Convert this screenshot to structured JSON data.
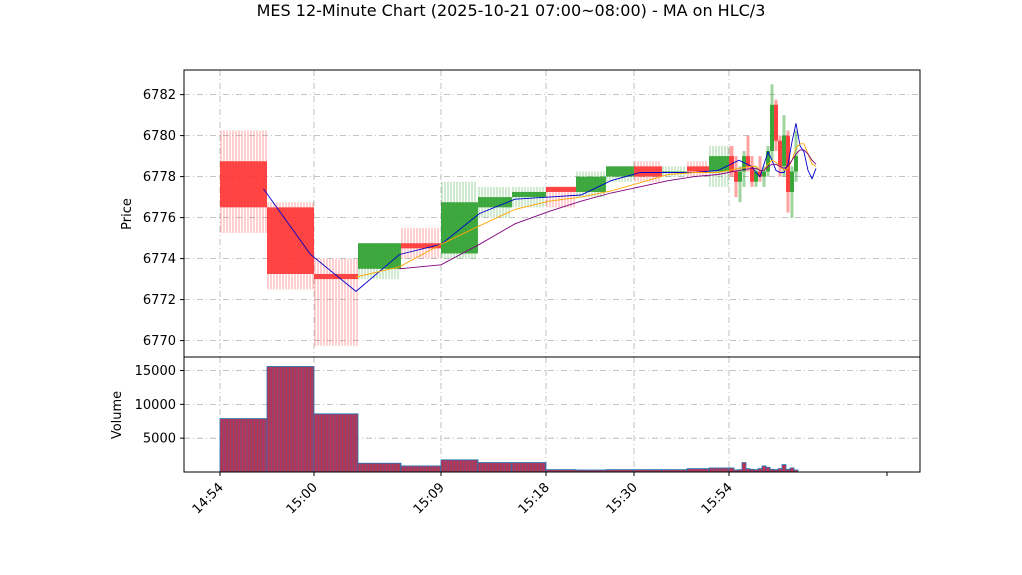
{
  "title": "MES 12-Minute Chart (2025-10-21 07:00~08:00) - MA on HLC/3",
  "colors": {
    "up": "#2ca02c",
    "down": "#ff3333",
    "ma_short": "#0000cc",
    "ma_mid": "#ffa500",
    "ma_long": "#800080",
    "volume_bar": "#c03050",
    "volume_edge": "#1f77b4",
    "grid": "#b0b0b0"
  },
  "chart_data": [
    {
      "type": "candlestick",
      "ylabel": "Price",
      "ylim": [
        6769.2,
        6783.2
      ],
      "yticks": [
        6770,
        6772,
        6774,
        6776,
        6778,
        6780,
        6782
      ],
      "xticks": [
        "14:54",
        "15:00",
        "15:09",
        "15:18",
        "15:30",
        "15:54"
      ],
      "grid": true,
      "candles": [
        {
          "o": 6778.75,
          "h": 6780.25,
          "l": 6775.25,
          "c": 6776.5
        },
        {
          "o": 6776.5,
          "h": 6776.75,
          "l": 6772.5,
          "c": 6773.25
        },
        {
          "o": 6773.25,
          "h": 6774.0,
          "l": 6769.75,
          "c": 6773.0
        },
        {
          "o": 6773.5,
          "h": 6774.75,
          "l": 6773.0,
          "c": 6774.75
        },
        {
          "o": 6774.75,
          "h": 6775.5,
          "l": 6774.0,
          "c": 6774.5
        },
        {
          "o": 6774.25,
          "h": 6777.75,
          "l": 6774.0,
          "c": 6776.75
        },
        {
          "o": 6776.5,
          "h": 6777.5,
          "l": 6776.0,
          "c": 6777.0
        },
        {
          "o": 6777.0,
          "h": 6777.5,
          "l": 6776.5,
          "c": 6777.25
        },
        {
          "o": 6777.5,
          "h": 6777.5,
          "l": 6776.5,
          "c": 6777.25
        },
        {
          "o": 6777.25,
          "h": 6778.25,
          "l": 6777.0,
          "c": 6778.0
        },
        {
          "o": 6778.0,
          "h": 6778.5,
          "l": 6777.75,
          "c": 6778.5
        },
        {
          "o": 6778.5,
          "h": 6778.75,
          "l": 6777.75,
          "c": 6778.0
        },
        {
          "o": 6778.25,
          "h": 6778.5,
          "l": 6778.0,
          "c": 6778.25
        },
        {
          "o": 6778.5,
          "h": 6778.75,
          "l": 6778.0,
          "c": 6778.25
        },
        {
          "o": 6778.25,
          "h": 6779.5,
          "l": 6777.5,
          "c": 6779.0
        },
        {
          "o": 6779.0,
          "h": 6779.5,
          "l": 6778.0,
          "c": 6778.25
        },
        {
          "o": 6778.25,
          "h": 6779.0,
          "l": 6777.0,
          "c": 6777.75
        },
        {
          "o": 6777.75,
          "h": 6778.5,
          "l": 6776.75,
          "c": 6778.25
        },
        {
          "o": 6778.25,
          "h": 6779.25,
          "l": 6777.5,
          "c": 6779.0
        },
        {
          "o": 6779.0,
          "h": 6780.0,
          "l": 6778.25,
          "c": 6778.5
        },
        {
          "o": 6778.5,
          "h": 6779.0,
          "l": 6777.5,
          "c": 6777.75
        },
        {
          "o": 6777.75,
          "h": 6778.5,
          "l": 6777.5,
          "c": 6778.25
        },
        {
          "o": 6778.25,
          "h": 6779.0,
          "l": 6777.75,
          "c": 6778.0
        },
        {
          "o": 6778.0,
          "h": 6778.5,
          "l": 6777.5,
          "c": 6778.25
        },
        {
          "o": 6778.25,
          "h": 6779.5,
          "l": 6778.0,
          "c": 6779.25
        },
        {
          "o": 6779.25,
          "h": 6782.5,
          "l": 6778.75,
          "c": 6781.5
        },
        {
          "o": 6781.5,
          "h": 6781.75,
          "l": 6779.25,
          "c": 6779.75
        },
        {
          "o": 6779.75,
          "h": 6780.0,
          "l": 6778.0,
          "c": 6778.5
        },
        {
          "o": 6778.5,
          "h": 6781.0,
          "l": 6778.0,
          "c": 6780.0
        },
        {
          "o": 6780.0,
          "h": 6780.25,
          "l": 6776.25,
          "c": 6777.25
        },
        {
          "o": 6777.25,
          "h": 6778.5,
          "l": 6776.0,
          "c": 6778.25
        },
        {
          "o": 6778.25,
          "h": 6780.25,
          "l": 6777.75,
          "c": 6779.0
        }
      ],
      "series": [
        {
          "values": [
            6777.4,
            6774.2,
            6772.4,
            6774.2,
            6774.7,
            6776.2,
            6776.9,
            6777.0,
            6777.1,
            6777.8,
            6778.2,
            6778.2,
            6778.2,
            6778.3,
            6778.8,
            6778.5,
            6778.2,
            6778.0,
            6778.6,
            6779.2,
            6778.8,
            6778.3,
            6778.2,
            6778.2,
            6778.6,
            6779.7,
            6780.6,
            6779.5,
            6779.2,
            6778.3,
            6777.9,
            6778.4
          ]
        },
        {
          "values": [
            null,
            null,
            6773.1,
            6773.6,
            6774.7,
            6775.6,
            6776.4,
            6776.8,
            6777.0,
            6777.3,
            6777.7,
            6778.1,
            6778.2,
            6778.2,
            6778.4,
            6778.5,
            6778.5,
            6778.3,
            6778.3,
            6778.6,
            6778.8,
            6778.7,
            6778.5,
            6778.3,
            6778.4,
            6778.8,
            6779.4,
            6779.6,
            6779.6,
            6779.1,
            6778.6,
            6778.5
          ]
        },
        {
          "values": [
            null,
            null,
            null,
            6773.5,
            6773.7,
            6774.7,
            6775.7,
            6776.3,
            6776.8,
            6777.2,
            6777.5,
            6777.8,
            6778.0,
            6778.1,
            6778.3,
            6778.4,
            6778.4,
            6778.3,
            6778.3,
            6778.5,
            6778.6,
            6778.6,
            6778.5,
            6778.4,
            6778.5,
            6778.8,
            6779.1,
            6779.3,
            6779.3,
            6779.1,
            6778.8,
            6778.6
          ]
        }
      ]
    },
    {
      "type": "bar",
      "ylabel": "Volume",
      "ylim": [
        0,
        17000
      ],
      "yticks": [
        5000,
        10000,
        15000
      ],
      "grid": true,
      "values": [
        7900,
        15600,
        8600,
        1300,
        900,
        1800,
        1400,
        1400,
        350,
        300,
        350,
        350,
        350,
        500,
        600,
        600,
        300,
        350,
        1400,
        500,
        400,
        350,
        500,
        900,
        700,
        400,
        350,
        500,
        1100,
        400,
        600,
        300
      ]
    }
  ]
}
